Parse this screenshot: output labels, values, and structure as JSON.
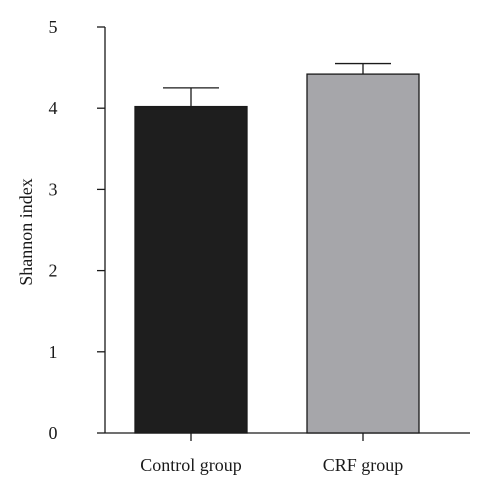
{
  "chart_data": {
    "type": "bar",
    "title": "",
    "xlabel": "",
    "ylabel": "Shannon index",
    "ylim": [
      0,
      5
    ],
    "yticks": [
      0,
      1,
      2,
      3,
      4,
      5
    ],
    "grid": false,
    "categories": [
      "Control group",
      "CRF group"
    ],
    "values": [
      4.02,
      4.42
    ],
    "error_upper": [
      4.25,
      4.55
    ],
    "colors": [
      "#1e1e1e",
      "#a6a6aa"
    ],
    "edge_color": "#1a1a1a"
  }
}
